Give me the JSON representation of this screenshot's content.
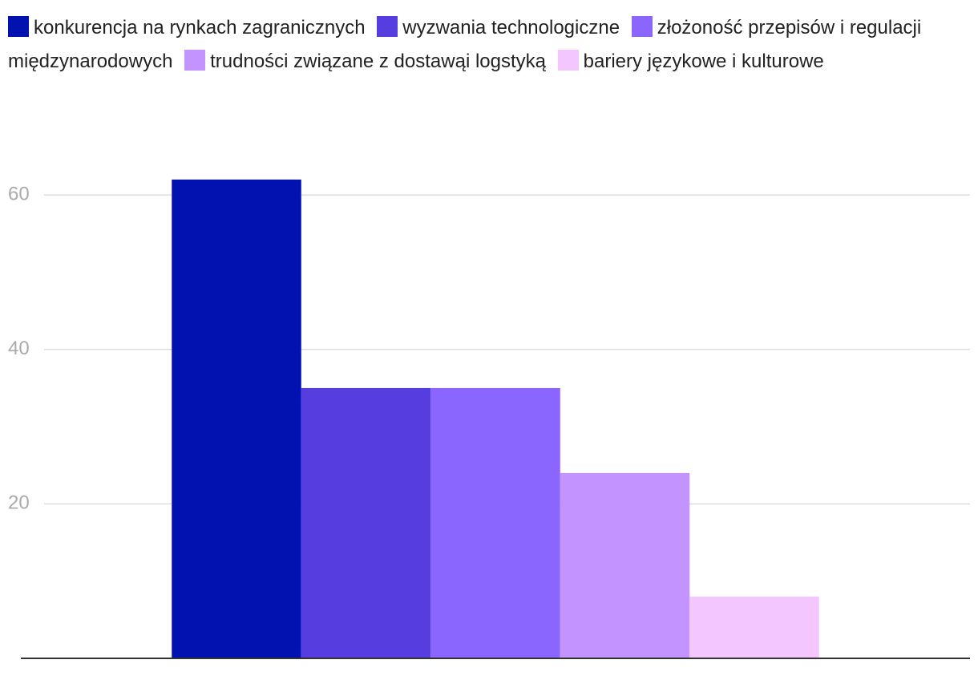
{
  "chart_data": {
    "type": "bar",
    "categories": [
      null
    ],
    "series": [
      {
        "name": "konkurencja na rynkach zagranicznych",
        "color": "#0212b0",
        "values": [
          62
        ]
      },
      {
        "name": "wyzwania technologiczne",
        "color": "#553de0",
        "values": [
          35
        ]
      },
      {
        "name": "złożoność przepisów i regulacji międzynarodowych",
        "color": "#8a66ff",
        "values": [
          35
        ]
      },
      {
        "name": "trudności związane z dostawąi logstyką",
        "color": "#c394ff",
        "values": [
          24
        ]
      },
      {
        "name": "bariery językowe i kulturowe",
        "color": "#f4c6ff",
        "values": [
          8
        ]
      }
    ],
    "ylim": [
      0,
      65
    ],
    "yticks": [
      20,
      40,
      60
    ],
    "grid": true
  }
}
